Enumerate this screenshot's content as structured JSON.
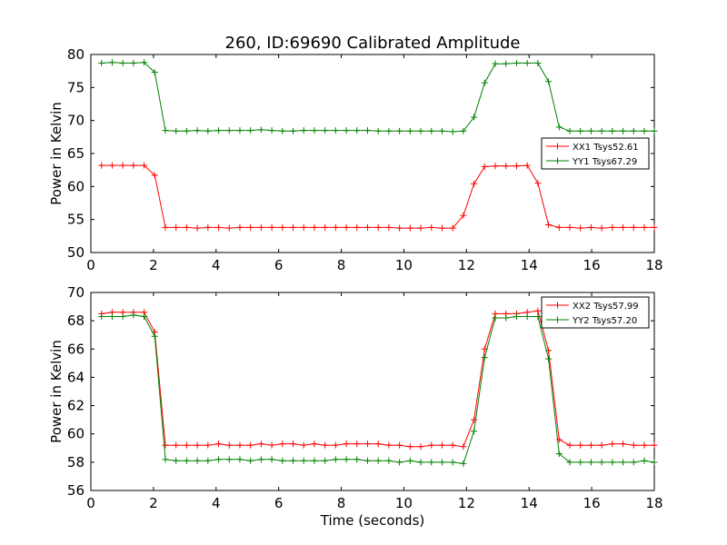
{
  "figure": {
    "title": "260, ID:69690 Calibrated Amplitude",
    "xlabel": "Time (seconds)"
  },
  "chart_data": [
    {
      "type": "line",
      "title": "260, ID:69690 Calibrated Amplitude",
      "xlabel": "",
      "ylabel": "Power in Kelvin",
      "xlim": [
        0,
        18
      ],
      "ylim": [
        50,
        80
      ],
      "xticks": [
        0,
        2,
        4,
        6,
        8,
        10,
        12,
        14,
        16,
        18
      ],
      "yticks": [
        50,
        55,
        60,
        65,
        70,
        75,
        80
      ],
      "grid": false,
      "legend_position": "right",
      "x": [
        0.34,
        0.68,
        1.02,
        1.36,
        1.7,
        2.04,
        2.38,
        2.72,
        3.06,
        3.4,
        3.74,
        4.08,
        4.42,
        4.76,
        5.1,
        5.44,
        5.78,
        6.12,
        6.46,
        6.8,
        7.14,
        7.48,
        7.82,
        8.16,
        8.5,
        8.84,
        9.18,
        9.52,
        9.86,
        10.2,
        10.54,
        10.88,
        11.22,
        11.56,
        11.9,
        12.24,
        12.58,
        12.92,
        13.26,
        13.6,
        13.94,
        14.28,
        14.62,
        14.96,
        15.3,
        15.64,
        15.98,
        16.32,
        16.66,
        17.0,
        17.34,
        17.68,
        18.0
      ],
      "series": [
        {
          "name": "XX1 Tsys52.61",
          "color": "#ff0000",
          "values": [
            63.2,
            63.2,
            63.2,
            63.2,
            63.2,
            61.7,
            53.8,
            53.8,
            53.8,
            53.7,
            53.8,
            53.8,
            53.7,
            53.8,
            53.8,
            53.8,
            53.8,
            53.8,
            53.8,
            53.8,
            53.8,
            53.8,
            53.8,
            53.8,
            53.8,
            53.8,
            53.8,
            53.8,
            53.7,
            53.7,
            53.7,
            53.8,
            53.7,
            53.7,
            55.6,
            60.4,
            63.0,
            63.1,
            63.1,
            63.1,
            63.2,
            60.5,
            54.2,
            53.8,
            53.8,
            53.7,
            53.8,
            53.7,
            53.8,
            53.8,
            53.8,
            53.8,
            53.8
          ]
        },
        {
          "name": "YY1 Tsys67.29",
          "color": "#008000",
          "values": [
            78.7,
            78.8,
            78.7,
            78.7,
            78.8,
            77.3,
            68.5,
            68.4,
            68.4,
            68.5,
            68.4,
            68.5,
            68.5,
            68.5,
            68.5,
            68.6,
            68.5,
            68.4,
            68.4,
            68.5,
            68.5,
            68.5,
            68.5,
            68.5,
            68.5,
            68.5,
            68.4,
            68.4,
            68.4,
            68.4,
            68.4,
            68.4,
            68.4,
            68.3,
            68.4,
            70.5,
            75.7,
            78.6,
            78.6,
            78.7,
            78.7,
            78.7,
            75.9,
            69.0,
            68.4,
            68.4,
            68.4,
            68.4,
            68.4,
            68.4,
            68.4,
            68.4,
            68.4
          ]
        }
      ]
    },
    {
      "type": "line",
      "title": "",
      "xlabel": "Time (seconds)",
      "ylabel": "Power in Kelvin",
      "xlim": [
        0,
        18
      ],
      "ylim": [
        56,
        70
      ],
      "xticks": [
        0,
        2,
        4,
        6,
        8,
        10,
        12,
        14,
        16,
        18
      ],
      "yticks": [
        56,
        58,
        60,
        62,
        64,
        66,
        68,
        70
      ],
      "grid": false,
      "legend_position": "top-right",
      "x": [
        0.34,
        0.68,
        1.02,
        1.36,
        1.7,
        2.04,
        2.38,
        2.72,
        3.06,
        3.4,
        3.74,
        4.08,
        4.42,
        4.76,
        5.1,
        5.44,
        5.78,
        6.12,
        6.46,
        6.8,
        7.14,
        7.48,
        7.82,
        8.16,
        8.5,
        8.84,
        9.18,
        9.52,
        9.86,
        10.2,
        10.54,
        10.88,
        11.22,
        11.56,
        11.9,
        12.24,
        12.58,
        12.92,
        13.26,
        13.6,
        13.94,
        14.28,
        14.62,
        14.96,
        15.3,
        15.64,
        15.98,
        16.32,
        16.66,
        17.0,
        17.34,
        17.68,
        18.0
      ],
      "series": [
        {
          "name": "XX2 Tsys57.99",
          "color": "#ff0000",
          "values": [
            68.5,
            68.6,
            68.6,
            68.6,
            68.6,
            67.2,
            59.2,
            59.2,
            59.2,
            59.2,
            59.2,
            59.3,
            59.2,
            59.2,
            59.2,
            59.3,
            59.2,
            59.3,
            59.3,
            59.2,
            59.3,
            59.2,
            59.2,
            59.3,
            59.3,
            59.3,
            59.3,
            59.2,
            59.2,
            59.1,
            59.1,
            59.2,
            59.2,
            59.2,
            59.1,
            61.0,
            66.0,
            68.5,
            68.5,
            68.5,
            68.6,
            68.7,
            65.9,
            59.6,
            59.2,
            59.2,
            59.2,
            59.2,
            59.3,
            59.3,
            59.2,
            59.2,
            59.2
          ]
        },
        {
          "name": "YY2 Tsys57.20",
          "color": "#008000",
          "values": [
            68.3,
            68.3,
            68.3,
            68.4,
            68.3,
            66.9,
            58.2,
            58.1,
            58.1,
            58.1,
            58.1,
            58.2,
            58.2,
            58.2,
            58.1,
            58.2,
            58.2,
            58.1,
            58.1,
            58.1,
            58.1,
            58.1,
            58.2,
            58.2,
            58.2,
            58.1,
            58.1,
            58.1,
            58.0,
            58.1,
            58.0,
            58.0,
            58.0,
            58.0,
            57.9,
            60.2,
            65.4,
            68.2,
            68.2,
            68.3,
            68.3,
            68.3,
            65.3,
            58.6,
            58.0,
            58.0,
            58.0,
            58.0,
            58.0,
            58.0,
            58.0,
            58.1,
            58.0
          ]
        }
      ]
    }
  ]
}
